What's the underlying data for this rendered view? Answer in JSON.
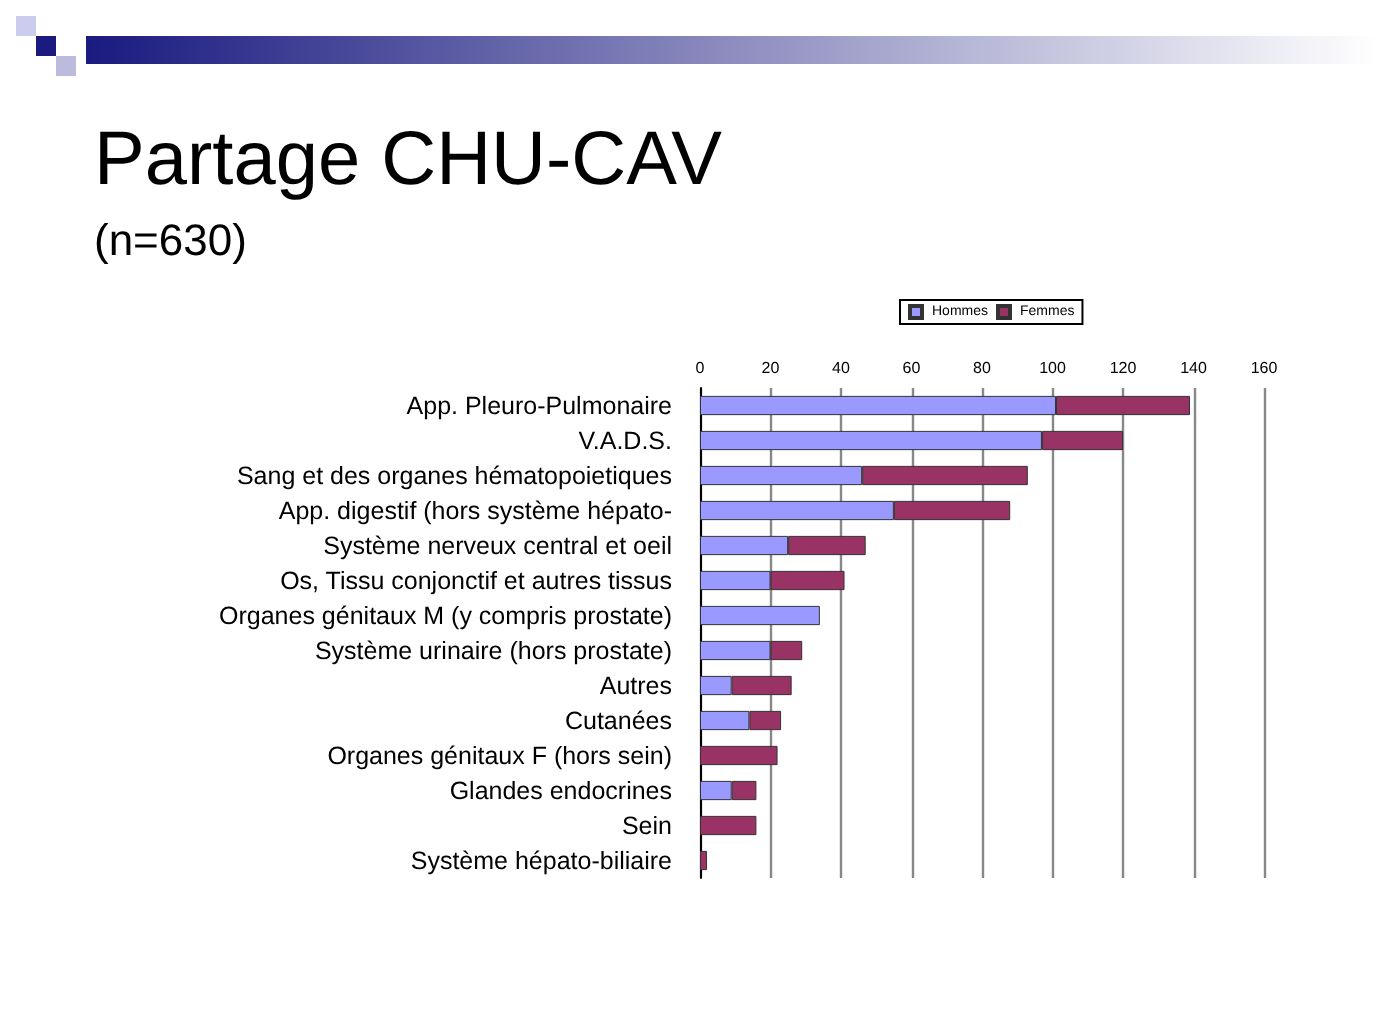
{
  "chart_data": {
    "type": "bar",
    "orientation": "horizontal",
    "stacked": true,
    "title": "Partage CHU-CAV",
    "subtitle": "(n=630)",
    "categories": [
      "App. Pleuro-Pulmonaire",
      "V.A.D.S.",
      "Sang et des organes hématopoietiques",
      "App. digestif (hors système hépato-",
      "Système nerveux central et oeil",
      "Os, Tissu conjonctif et autres tissus",
      "Organes génitaux M (y compris prostate)",
      "Système urinaire (hors prostate)",
      "Autres",
      "Cutanées",
      "Organes génitaux F (hors sein)",
      "Glandes endocrines",
      "Sein",
      "Système hépato-biliaire"
    ],
    "series": [
      {
        "name": "Hommes",
        "color": "#9999ff",
        "values": [
          101,
          97,
          46,
          55,
          25,
          20,
          34,
          20,
          9,
          14,
          0,
          9,
          0,
          0
        ]
      },
      {
        "name": "Femmes",
        "color": "#993366",
        "values": [
          38,
          23,
          47,
          33,
          22,
          21,
          0,
          9,
          17,
          9,
          22,
          7,
          16,
          2
        ]
      }
    ],
    "xlim": [
      0,
      160
    ],
    "xticks": [
      0,
      20,
      40,
      60,
      80,
      100,
      120,
      140,
      160
    ],
    "grid": "x",
    "legend": "top"
  }
}
